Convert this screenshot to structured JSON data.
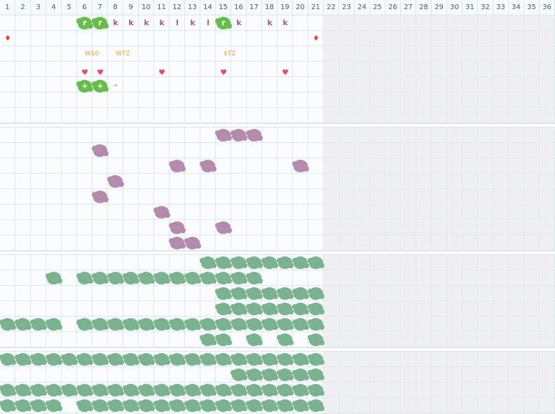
{
  "grid": {
    "columns": [
      "1",
      "2",
      "3",
      "4",
      "5",
      "6",
      "7",
      "8",
      "9",
      "10",
      "11",
      "12",
      "13",
      "14",
      "15",
      "16",
      "17",
      "18",
      "19",
      "20",
      "21",
      "22",
      "23",
      "24",
      "25",
      "26",
      "27",
      "28",
      "29",
      "30",
      "31",
      "32",
      "33",
      "34",
      "35",
      "36"
    ]
  },
  "section1": {
    "letters_row1": [
      {
        "col": 6,
        "text": "r",
        "blob": true
      },
      {
        "col": 7,
        "text": "r",
        "blob": true
      },
      {
        "col": 8,
        "text": "k"
      },
      {
        "col": 9,
        "text": "k"
      },
      {
        "col": 10,
        "text": "k"
      },
      {
        "col": 11,
        "text": "k"
      },
      {
        "col": 12,
        "text": "l"
      },
      {
        "col": 13,
        "text": "k"
      },
      {
        "col": 14,
        "text": "l"
      },
      {
        "col": 15,
        "text": "r",
        "blob": true
      },
      {
        "col": 16,
        "text": "k"
      },
      {
        "col": 18,
        "text": "k"
      },
      {
        "col": 19,
        "text": "k"
      }
    ],
    "drops_row2": [
      1,
      21
    ],
    "drop_glyph": "♦",
    "tags_row3": [
      {
        "col": 6.5,
        "text": "W$0"
      },
      {
        "col": 8.5,
        "text": "WTZ"
      },
      {
        "col": 15.5,
        "text": "$TZ"
      }
    ],
    "hearts_row4": [
      6,
      7,
      11,
      15,
      19
    ],
    "heart_glyph": "♥",
    "plus_blobs_row5": [
      6,
      7
    ],
    "plus_glyph": "+",
    "dash_row5": {
      "col": 8,
      "text": "–"
    }
  },
  "section2": {
    "mauve_cells": [
      [
        1,
        15
      ],
      [
        1,
        16
      ],
      [
        1,
        17
      ],
      [
        2,
        7
      ],
      [
        3,
        12
      ],
      [
        3,
        14
      ],
      [
        3,
        20
      ],
      [
        4,
        8
      ],
      [
        5,
        7
      ],
      [
        6,
        11
      ],
      [
        7,
        12
      ],
      [
        7,
        15
      ],
      [
        8,
        12
      ],
      [
        8,
        13
      ]
    ]
  },
  "section3": {
    "rows": [
      [
        14,
        15,
        16,
        17,
        18,
        19,
        20,
        21
      ],
      [
        4,
        6,
        7,
        8,
        9,
        10,
        11,
        12,
        13,
        14,
        15,
        16,
        17
      ],
      [
        15,
        16,
        17,
        18,
        19,
        20,
        21
      ],
      [
        15,
        16,
        17,
        18,
        19,
        20,
        21
      ],
      [
        1,
        2,
        3,
        4,
        6,
        7,
        8,
        9,
        10,
        11,
        12,
        13,
        14,
        15,
        16,
        17,
        18,
        19,
        20,
        21
      ],
      [
        14,
        15,
        17,
        19,
        21
      ]
    ]
  },
  "section4": {
    "rows": [
      [
        1,
        2,
        3,
        4,
        5,
        6,
        7,
        8,
        9,
        10,
        11,
        12,
        13,
        14,
        15,
        16,
        17,
        18,
        19,
        20,
        21
      ],
      [
        16,
        17,
        18,
        19,
        20,
        21
      ],
      [
        1,
        2,
        3,
        4,
        5,
        6,
        7,
        8,
        9,
        10,
        11,
        12,
        13,
        14,
        15,
        16,
        17,
        18,
        19,
        20,
        21
      ],
      [
        1,
        2,
        3,
        4,
        6,
        7,
        8,
        9,
        10,
        11,
        12,
        13,
        14,
        15,
        16,
        17,
        18,
        19,
        20,
        21
      ]
    ]
  }
}
